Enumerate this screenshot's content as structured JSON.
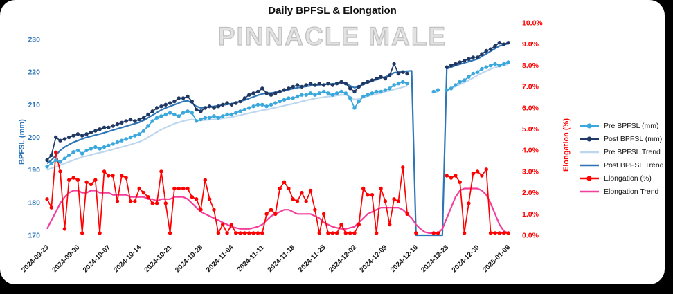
{
  "title": "Daily BPFSL & Elongation",
  "watermark": "PINNACLE MALE",
  "colors": {
    "pre_bpfsl": "#3AA8DC",
    "post_bpfsl": "#1F3864",
    "pre_trend": "#BDD7EE",
    "post_trend": "#2E75B6",
    "elongation": "#FF0000",
    "elongation_trend": "#F23E9C",
    "left_axis_text": "#2E75B6",
    "right_axis_text": "#FF0000"
  },
  "chart_data": {
    "type": "line",
    "title": "Daily BPFSL & Elongation",
    "x_days": 106,
    "x_tick_labels": [
      "2024-09-23",
      "2024-09-30",
      "2024-10-07",
      "2024-10-14",
      "2024-10-21",
      "2024-10-28",
      "2024-11-04",
      "2024-11-11",
      "2024-11-18",
      "2024-11-25",
      "2024-12-02",
      "2024-12-09",
      "2024-12-16",
      "2024-12-23",
      "2024-12-30",
      "2025-01-06"
    ],
    "left_axis": {
      "title": "BPFSL (mm)",
      "min": 170,
      "max": 230,
      "tick_step": 10,
      "color": "#2E75B6",
      "tick_labels": [
        "170",
        "180",
        "190",
        "200",
        "210",
        "220",
        "230"
      ]
    },
    "right_axis": {
      "title": "Elongation (%)",
      "min": 0,
      "max": 10,
      "tick_step": 1,
      "color": "#FF0000",
      "tick_labels": [
        "0.0%",
        "1.0%",
        "2.0%",
        "3.0%",
        "4.0%",
        "5.0%",
        "6.0%",
        "7.0%",
        "8.0%",
        "9.0%",
        "10.0%"
      ]
    },
    "legend_position": "right",
    "series": [
      {
        "name": "Pre BPFSL (mm)",
        "axis": "left",
        "color": "#3AA8DC",
        "markers": true,
        "values": [
          191,
          192,
          193,
          192.5,
          193.5,
          194.5,
          195.5,
          196,
          195,
          196,
          196.5,
          197,
          196.5,
          197,
          197.5,
          198,
          198.5,
          199,
          199.5,
          200,
          200.5,
          201,
          202,
          203.5,
          205,
          206,
          206.5,
          207,
          207.5,
          207,
          206.5,
          207.5,
          208,
          207.5,
          205,
          205.5,
          206,
          206,
          206.5,
          206,
          206.5,
          207,
          207,
          207.5,
          208,
          208.5,
          209,
          209.5,
          210,
          210,
          209.5,
          210,
          210.5,
          211,
          211.5,
          212,
          212,
          212.5,
          213,
          213,
          213.5,
          213,
          213.5,
          214,
          213.5,
          213,
          213.5,
          214,
          213.5,
          212,
          209,
          211,
          212.5,
          213,
          213.5,
          214,
          214,
          214.5,
          215,
          216,
          216.5,
          217,
          216.5,
          null,
          null,
          null,
          null,
          null,
          214,
          214.5,
          null,
          214.5,
          215,
          216,
          217,
          217.5,
          218.5,
          219.5,
          220,
          221,
          221.5,
          222,
          222.5,
          222,
          222.5,
          223
        ]
      },
      {
        "name": "Post BPFSL (mm)",
        "axis": "left",
        "color": "#1F3864",
        "markers": true,
        "values": [
          193,
          194.5,
          200,
          199,
          199.5,
          200,
          200.5,
          201,
          200.5,
          201,
          201.5,
          202,
          202.5,
          203,
          203,
          203.5,
          204,
          204.5,
          205,
          205.5,
          205,
          205.5,
          206,
          207,
          208,
          209,
          209.5,
          210,
          210.5,
          211,
          212,
          212,
          212.5,
          211,
          208.5,
          208,
          209,
          209.5,
          209,
          209.5,
          210,
          210.5,
          210,
          210.5,
          211,
          212,
          213,
          213.5,
          214,
          215,
          213.5,
          213,
          213.5,
          214,
          214.5,
          215,
          215.5,
          216,
          215.5,
          216,
          216.5,
          216,
          216.5,
          216,
          216.5,
          216,
          216.5,
          217,
          216.5,
          215,
          214,
          215.5,
          216.5,
          217,
          217.5,
          218,
          218.5,
          218,
          219,
          222.5,
          219.5,
          220,
          219.5,
          null,
          null,
          null,
          null,
          null,
          null,
          null,
          null,
          221.5,
          222,
          222.5,
          223,
          223.5,
          224,
          224.5,
          224.5,
          225.5,
          226.5,
          227,
          228,
          229,
          228.5,
          229
        ]
      },
      {
        "name": "Pre BPFSL Trend",
        "axis": "left",
        "color": "#BDD7EE",
        "markers": false,
        "values": [
          190,
          190.5,
          191,
          191.5,
          192,
          192.5,
          193,
          193.5,
          194,
          194.3,
          194.6,
          195,
          195.3,
          195.6,
          196,
          196.3,
          196.7,
          197,
          197.4,
          197.8,
          198.2,
          198.6,
          199.2,
          200,
          200.8,
          201.6,
          202.4,
          203,
          203.6,
          204.2,
          204.6,
          205,
          205.3,
          205.5,
          205.3,
          205.2,
          205.3,
          205.4,
          205.5,
          205.6,
          205.8,
          206,
          206.2,
          206.5,
          206.8,
          207.1,
          207.4,
          207.7,
          208,
          208.3,
          208.5,
          208.8,
          209.1,
          209.4,
          209.7,
          210,
          210.3,
          210.6,
          211,
          211.3,
          211.6,
          211.9,
          212.1,
          212.3,
          212.5,
          212.6,
          212.8,
          213,
          213,
          212.5,
          211.5,
          211.8,
          212.2,
          212.6,
          213,
          213.3,
          213.6,
          214,
          214.3,
          214.7,
          215,
          215.4,
          215.8,
          null,
          null,
          null,
          null,
          null,
          213.8,
          214,
          null,
          214.5,
          215,
          215.6,
          216.2,
          216.8,
          217.5,
          218.2,
          219,
          219.7,
          220.3,
          220.9,
          221.4,
          221.8,
          222.1,
          222.4
        ]
      },
      {
        "name": "Post BPFSL Trend",
        "axis": "left",
        "color": "#2E75B6",
        "markers": false,
        "values": [
          192,
          193,
          194.5,
          196,
          197,
          197.8,
          198.5,
          199,
          199.5,
          200,
          200.3,
          200.7,
          201,
          201.4,
          201.8,
          202.2,
          202.6,
          203,
          203.4,
          203.8,
          204.2,
          204.6,
          205.2,
          206,
          206.8,
          207.6,
          208.4,
          209,
          209.5,
          210,
          210.5,
          211,
          211.2,
          210.5,
          209.5,
          209,
          209.2,
          209.4,
          209.5,
          209.7,
          209.9,
          210.1,
          210.3,
          210.6,
          211,
          211.4,
          211.9,
          212.4,
          212.9,
          213.3,
          213.5,
          213.6,
          213.8,
          214,
          214.3,
          214.6,
          214.9,
          215.2,
          215.4,
          215.6,
          215.8,
          216,
          216.1,
          216.2,
          216.3,
          216.4,
          216.5,
          216.6,
          216.4,
          215.8,
          215.2,
          215.6,
          216.2,
          216.7,
          217.2,
          217.7,
          218.2,
          218.5,
          219,
          219.8,
          220,
          220.2,
          220.3,
          220.4,
          170,
          170,
          170,
          170,
          170,
          170,
          170,
          221,
          221.5,
          222,
          222.4,
          222.8,
          223.2,
          223.6,
          224,
          224.8,
          225.6,
          226.4,
          227.2,
          228,
          228.4,
          228.7
        ]
      },
      {
        "name": "Elongation (%)",
        "axis": "right",
        "color": "#FF0000",
        "markers": true,
        "values": [
          1.7,
          1.3,
          3.9,
          3.0,
          0.3,
          2.6,
          2.7,
          2.6,
          0.1,
          2.5,
          2.4,
          2.6,
          0.1,
          3.0,
          2.8,
          2.8,
          1.6,
          2.8,
          2.7,
          1.6,
          1.6,
          2.2,
          2.0,
          1.8,
          1.5,
          1.5,
          3.0,
          1.5,
          0.1,
          2.2,
          2.2,
          2.2,
          2.2,
          1.8,
          1.7,
          1.2,
          2.6,
          1.7,
          1.2,
          0.1,
          0.5,
          0.1,
          0.5,
          0.1,
          0.1,
          0.1,
          0.1,
          0.1,
          0.1,
          0.1,
          1.0,
          1.2,
          1.0,
          2.2,
          2.5,
          2.2,
          1.7,
          1.6,
          2.0,
          1.6,
          2.1,
          1.2,
          0.1,
          1.0,
          0.1,
          0.1,
          0.1,
          0.5,
          0.1,
          0.1,
          0.1,
          0.5,
          2.2,
          1.9,
          1.9,
          0.1,
          2.2,
          1.6,
          0.5,
          1.7,
          1.6,
          3.2,
          1.0,
          null,
          0.1,
          null,
          null,
          null,
          0.1,
          0.1,
          null,
          2.8,
          2.7,
          2.8,
          2.5,
          0.1,
          1.5,
          2.9,
          3.0,
          2.8,
          3.1,
          0.1,
          0.1,
          0.1,
          0.1,
          0.1
        ]
      },
      {
        "name": "Elongation Trend",
        "axis": "right",
        "color": "#F23E9C",
        "markers": false,
        "values": [
          0.3,
          0.7,
          1.1,
          1.5,
          1.8,
          2.0,
          2.1,
          2.1,
          2.0,
          2.0,
          2.1,
          2.1,
          2.0,
          2.0,
          2.0,
          1.9,
          1.9,
          1.9,
          1.9,
          1.8,
          1.8,
          1.8,
          1.8,
          1.7,
          1.7,
          1.6,
          1.7,
          1.7,
          1.7,
          1.8,
          1.8,
          1.8,
          1.7,
          1.5,
          1.3,
          1.1,
          1.0,
          0.9,
          0.8,
          0.7,
          0.6,
          0.5,
          0.4,
          0.35,
          0.3,
          0.3,
          0.3,
          0.35,
          0.4,
          0.5,
          0.7,
          0.9,
          1.0,
          1.1,
          1.2,
          1.2,
          1.1,
          1.0,
          1.0,
          1.0,
          1.0,
          0.9,
          0.8,
          0.6,
          0.5,
          0.4,
          0.35,
          0.3,
          0.3,
          0.35,
          0.4,
          0.6,
          0.8,
          1.0,
          1.1,
          1.2,
          1.3,
          1.3,
          1.3,
          1.3,
          1.3,
          1.2,
          1.0,
          0.8,
          0.5,
          0.3,
          0.15,
          0.1,
          0.1,
          0.1,
          0.3,
          0.8,
          1.3,
          1.8,
          2.1,
          2.2,
          2.2,
          2.2,
          2.2,
          2.1,
          1.9,
          1.5,
          1.0,
          0.5,
          0.2,
          0.1
        ]
      }
    ]
  }
}
